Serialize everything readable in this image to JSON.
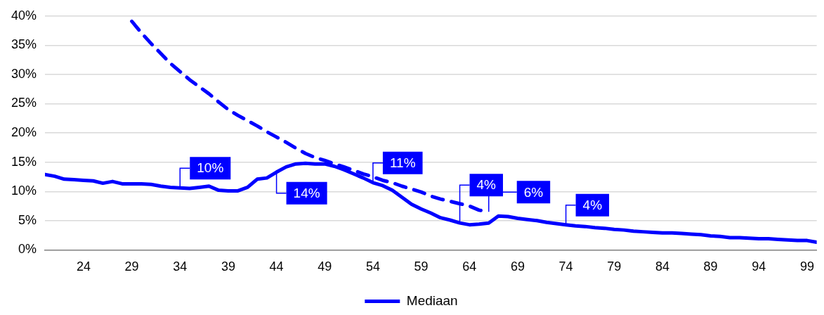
{
  "chart_data": {
    "type": "line",
    "x": [
      20,
      21,
      22,
      23,
      24,
      25,
      26,
      27,
      28,
      29,
      30,
      31,
      32,
      33,
      34,
      35,
      36,
      37,
      38,
      39,
      40,
      41,
      42,
      43,
      44,
      45,
      46,
      47,
      48,
      49,
      50,
      51,
      52,
      53,
      54,
      55,
      56,
      57,
      58,
      59,
      60,
      61,
      62,
      63,
      64,
      65,
      66,
      67,
      68,
      69,
      70,
      71,
      72,
      73,
      74,
      75,
      76,
      77,
      78,
      79,
      80,
      81,
      82,
      83,
      84,
      85,
      86,
      87,
      88,
      89,
      90,
      91,
      92,
      93,
      94,
      95,
      96,
      97,
      98,
      99,
      100
    ],
    "series": [
      {
        "name": "Mediaan",
        "color": "#0000ff",
        "line_style": "solid",
        "values": [
          12.9,
          12.6,
          12.1,
          12.0,
          11.9,
          11.8,
          11.4,
          11.7,
          11.3,
          11.3,
          11.3,
          11.2,
          10.9,
          10.7,
          10.6,
          10.5,
          10.7,
          10.9,
          10.2,
          10.1,
          10.1,
          10.7,
          12.1,
          12.3,
          13.3,
          14.2,
          14.7,
          14.8,
          14.7,
          14.7,
          14.3,
          13.7,
          13.0,
          12.3,
          11.5,
          11.0,
          10.2,
          9.0,
          7.8,
          7.0,
          6.3,
          5.5,
          5.1,
          4.6,
          4.3,
          4.4,
          4.6,
          5.8,
          5.7,
          5.4,
          5.2,
          5.0,
          4.7,
          4.5,
          4.3,
          4.1,
          4.0,
          3.8,
          3.7,
          3.5,
          3.4,
          3.2,
          3.1,
          3.0,
          2.9,
          2.9,
          2.8,
          2.7,
          2.6,
          2.4,
          2.3,
          2.1,
          2.1,
          2.0,
          1.9,
          1.9,
          1.8,
          1.7,
          1.6,
          1.6,
          1.3
        ]
      },
      {
        "color": "#0000ff",
        "line_style": "dashed",
        "x": [
          29,
          30,
          31,
          32,
          33,
          34,
          35,
          36,
          37,
          38,
          39,
          40,
          41,
          42,
          43,
          44,
          45,
          46,
          47,
          48,
          49,
          50,
          51,
          52,
          53,
          54,
          55,
          56,
          57,
          58,
          59,
          60,
          61,
          62,
          63,
          64,
          65,
          66
        ],
        "values": [
          39.1,
          37.1,
          35.3,
          33.6,
          31.9,
          30.5,
          29.1,
          27.9,
          26.7,
          25.3,
          24.0,
          23.0,
          22.1,
          21.2,
          20.2,
          19.3,
          18.4,
          17.4,
          16.5,
          15.8,
          15.3,
          14.7,
          14.2,
          13.6,
          13.0,
          12.5,
          11.9,
          11.5,
          10.9,
          10.4,
          9.9,
          9.2,
          8.7,
          8.3,
          7.9,
          7.5,
          6.8,
          6.5
        ]
      }
    ],
    "xlim": [
      20,
      100
    ],
    "xticks": [
      24,
      29,
      34,
      39,
      44,
      49,
      54,
      59,
      64,
      69,
      74,
      79,
      84,
      89,
      94,
      99
    ],
    "ylim": [
      0,
      40
    ],
    "yticks": [
      {
        "value": 0,
        "label": "0%"
      },
      {
        "value": 5,
        "label": "5%"
      },
      {
        "value": 10,
        "label": "10%"
      },
      {
        "value": 15,
        "label": "15%"
      },
      {
        "value": 20,
        "label": "20%"
      },
      {
        "value": 25,
        "label": "25%"
      },
      {
        "value": 30,
        "label": "30%"
      },
      {
        "value": 35,
        "label": "35%"
      },
      {
        "value": 40,
        "label": "40%"
      }
    ],
    "grid": "y",
    "legend": "bottom",
    "marker": "none",
    "annotations": [
      {
        "text": "10%",
        "x": 34,
        "y": 10.6
      },
      {
        "text": "14%",
        "x": 44,
        "y": 13.3
      },
      {
        "text": "11%",
        "x": 54,
        "y": 11.5
      },
      {
        "text": "4%",
        "x": 63,
        "y": 4.6
      },
      {
        "text": "6%",
        "x": 66,
        "y": 6.5
      },
      {
        "text": "4%",
        "x": 74,
        "y": 4.3
      }
    ]
  }
}
